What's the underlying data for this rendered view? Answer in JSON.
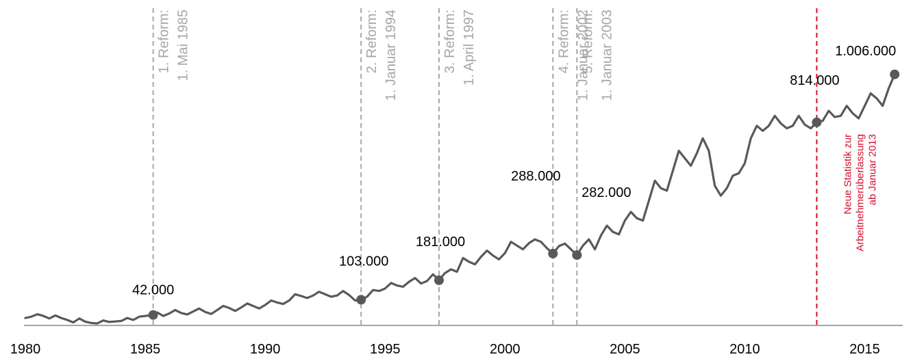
{
  "chart_data": {
    "type": "line",
    "title": "",
    "xlabel": "",
    "ylabel": "",
    "xlim": [
      1980,
      2016.5
    ],
    "ylim": [
      0,
      1050000
    ],
    "colors": {
      "line": "#595959",
      "reform": "#a6a6a6",
      "new_stat": "#d0102c",
      "axis": "#a6a6a6"
    },
    "x_ticks": [
      "1980",
      "1985",
      "1990",
      "1995",
      "2000",
      "2005",
      "2010",
      "2015"
    ],
    "series": [
      {
        "name": "",
        "segments": [
          {
            "x": [
              1980.0,
              1980.25,
              1980.5,
              1980.75,
              1981.0,
              1981.25,
              1981.5,
              1981.75,
              1982.0,
              1982.25,
              1982.5,
              1982.75,
              1983.0,
              1983.25,
              1983.5,
              1983.75,
              1984.0,
              1984.25,
              1984.5,
              1984.75,
              1985.0,
              1985.33
            ],
            "y": [
              30000,
              35000,
              45000,
              38000,
              28000,
              40000,
              30000,
              22000,
              12000,
              28000,
              15000,
              10000,
              8000,
              20000,
              14000,
              16000,
              18000,
              30000,
              22000,
              35000,
              38000,
              42000
            ]
          },
          {
            "x": [
              1985.33,
              1985.5,
              1985.75,
              1986.0,
              1986.25,
              1986.5,
              1986.75,
              1987.0,
              1987.25,
              1987.5,
              1987.75,
              1988.0,
              1988.25,
              1988.5,
              1988.75,
              1989.0,
              1989.25,
              1989.5,
              1989.75,
              1990.0,
              1990.25,
              1990.5,
              1990.75,
              1991.0,
              1991.25,
              1991.5,
              1991.75,
              1992.0,
              1992.25,
              1992.5,
              1992.75,
              1993.0,
              1993.25,
              1993.5,
              1993.75,
              1994.0
            ],
            "y": [
              42000,
              52000,
              38000,
              48000,
              62000,
              50000,
              44000,
              56000,
              68000,
              54000,
              46000,
              62000,
              78000,
              70000,
              58000,
              72000,
              88000,
              78000,
              68000,
              82000,
              100000,
              92000,
              86000,
              100000,
              125000,
              118000,
              110000,
              120000,
              135000,
              125000,
              115000,
              120000,
              138000,
              122000,
              100000,
              103000
            ]
          },
          {
            "x": [
              1994.0,
              1994.25,
              1994.5,
              1994.75,
              1995.0,
              1995.25,
              1995.5,
              1995.75,
              1996.0,
              1996.25,
              1996.5,
              1996.75,
              1997.0,
              1997.25
            ],
            "y": [
              103000,
              115000,
              142000,
              138000,
              148000,
              170000,
              160000,
              155000,
              175000,
              190000,
              168000,
              178000,
              205000,
              181000
            ]
          },
          {
            "x": [
              1997.25,
              1997.5,
              1997.75,
              1998.0,
              1998.25,
              1998.5,
              1998.75,
              1999.0,
              1999.25,
              1999.5,
              1999.75,
              2000.0,
              2000.25,
              2000.5,
              2000.75,
              2001.0,
              2001.25,
              2001.5,
              2001.75,
              2002.0
            ],
            "y": [
              181000,
              210000,
              225000,
              215000,
              270000,
              255000,
              245000,
              275000,
              300000,
              280000,
              265000,
              290000,
              335000,
              320000,
              305000,
              330000,
              345000,
              335000,
              310000,
              288000
            ]
          },
          {
            "x": [
              2002.0,
              2002.25,
              2002.5,
              2002.75,
              2003.0
            ],
            "y": [
              288000,
              318000,
              328000,
              305000,
              282000
            ]
          },
          {
            "x": [
              2003.0,
              2003.25,
              2003.5,
              2003.75,
              2004.0,
              2004.25,
              2004.5,
              2004.75,
              2005.0,
              2005.25,
              2005.5,
              2005.75,
              2006.0,
              2006.25,
              2006.5,
              2006.75,
              2007.0,
              2007.25,
              2007.5,
              2007.75,
              2008.0,
              2008.25,
              2008.5,
              2008.75,
              2009.0,
              2009.25,
              2009.5,
              2009.75,
              2010.0,
              2010.25,
              2010.5,
              2010.75,
              2011.0,
              2011.25,
              2011.5,
              2011.75,
              2012.0,
              2012.25,
              2012.5,
              2012.75,
              2013.0
            ],
            "y": [
              282000,
              320000,
              345000,
              305000,
              360000,
              400000,
              375000,
              365000,
              420000,
              455000,
              430000,
              420000,
              500000,
              580000,
              550000,
              540000,
              620000,
              700000,
              670000,
              640000,
              690000,
              750000,
              700000,
              560000,
              520000,
              550000,
              600000,
              610000,
              650000,
              750000,
              800000,
              780000,
              800000,
              840000,
              810000,
              790000,
              800000,
              840000,
              805000,
              790000,
              814000
            ]
          },
          {
            "x": [
              2013.0,
              2013.25,
              2013.5,
              2013.75,
              2014.0,
              2014.25,
              2014.5,
              2014.75,
              2015.0,
              2015.25,
              2015.5,
              2015.75,
              2016.0,
              2016.25
            ],
            "y": [
              814000,
              820000,
              860000,
              835000,
              840000,
              880000,
              850000,
              830000,
              880000,
              930000,
              910000,
              880000,
              950000,
              1006000
            ]
          }
        ]
      }
    ],
    "reforms": [
      {
        "x": 1985.33,
        "lines": [
          "1. Reform:",
          "1. Mai 1985"
        ]
      },
      {
        "x": 1994.0,
        "lines": [
          "2. Reform:",
          "1. Januar 1994"
        ]
      },
      {
        "x": 1997.25,
        "lines": [
          "3. Reform:",
          "1. April 1997"
        ]
      },
      {
        "x": 2002.0,
        "lines": [
          "4. Reform:",
          "1. Januar 2002"
        ]
      },
      {
        "x": 2003.0,
        "lines": [
          "5. Reform:",
          "1. Januar 2003"
        ]
      }
    ],
    "new_statistic": {
      "x": 2013.0,
      "lines": [
        "Neue Statistik zur",
        "Arbeitnehmerüberlassung",
        "ab Januar 2013"
      ]
    },
    "markers": [
      {
        "x": 1985.33,
        "y": 42000,
        "label": "42.000"
      },
      {
        "x": 1994.0,
        "y": 103000,
        "label": "103.000"
      },
      {
        "x": 1997.25,
        "y": 181000,
        "label": "181.000"
      },
      {
        "x": 2002.0,
        "y": 288000,
        "label": "288.000"
      },
      {
        "x": 2003.0,
        "y": 282000,
        "label": "282.000"
      },
      {
        "x": 2013.0,
        "y": 814000,
        "label": "814.000"
      },
      {
        "x": 2016.25,
        "y": 1006000,
        "label": "1.006.000"
      }
    ]
  }
}
